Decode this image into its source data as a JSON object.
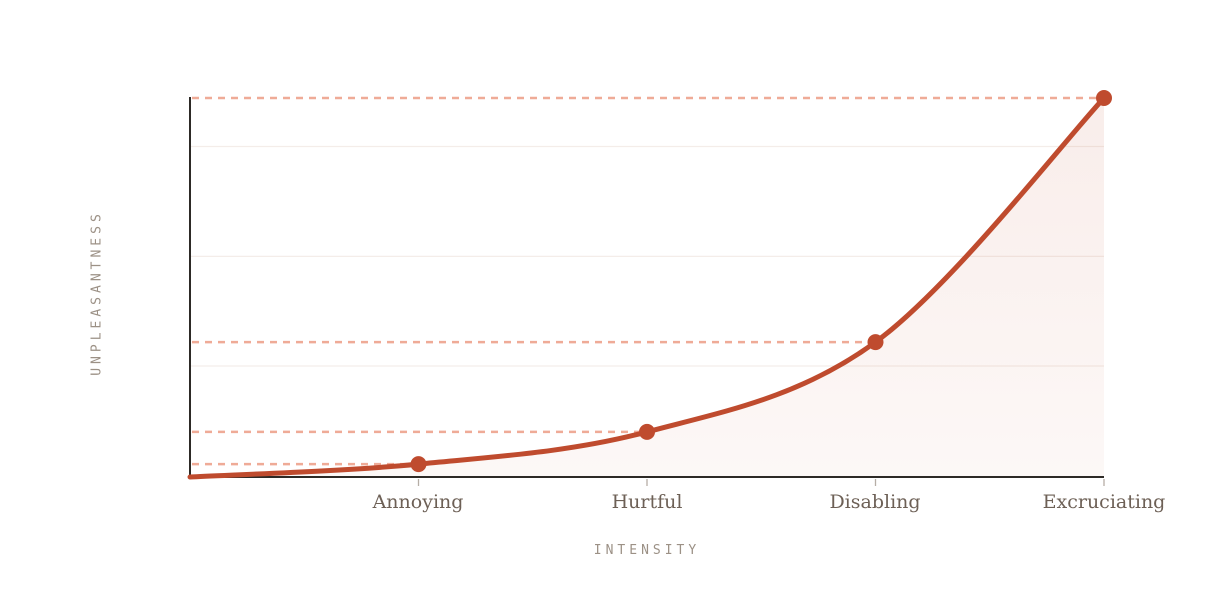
{
  "chart_data": {
    "type": "line",
    "title": "",
    "xlabel": "INTENSITY",
    "ylabel": "UNPLEASANTNESS",
    "categories": [
      "Annoying",
      "Hurtful",
      "Disabling",
      "Excruciating"
    ],
    "values": [
      0.034,
      0.119,
      0.356,
      1.0
    ],
    "origin_value": 0,
    "ylim": [
      0,
      1
    ],
    "x_axis_type": "ordinal",
    "y_axis_ticks_labeled": false,
    "gridline_values": [
      0.293,
      0.582,
      0.872
    ],
    "grid": true,
    "legend": "none",
    "curve_shape": "exponential",
    "annotations": "dashed leader lines from y-axis to each data point",
    "colors": {
      "line": "#bf4b2e",
      "point": "#bf4b2e",
      "dashed_leader": "#efab97",
      "gridline": "#f4ede9",
      "axis": "#2d2a26",
      "tick": "#b6aea6",
      "axis_label_text": "#9c9186",
      "category_text": "#6d6056",
      "fill_color": "#bf4b2e",
      "fill_opacity_top": 0.1,
      "fill_opacity_bottom": 0.04,
      "background": "#ffffff"
    }
  }
}
